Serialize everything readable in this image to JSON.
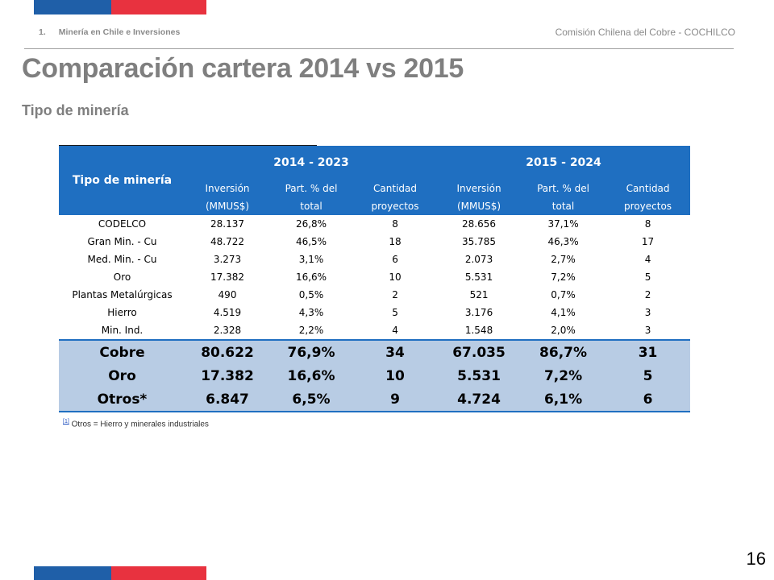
{
  "header": {
    "section_number": "1.",
    "section_title": "Minería en Chile e Inversiones",
    "organization": "Comisión Chilena del Cobre - COCHILCO"
  },
  "title": "Comparación cartera 2014 vs 2015",
  "subtitle": "Tipo de minería",
  "table": {
    "row_header": "Tipo de minería",
    "group1": "2014 - 2023",
    "group2": "2015 - 2024",
    "col_headers": [
      {
        "l1": "Inversión",
        "l2": "(MMUS$)"
      },
      {
        "l1": "Part. % del",
        "l2": "total"
      },
      {
        "l1": "Cantidad",
        "l2": "proyectos"
      },
      {
        "l1": "Inversión",
        "l2": "(MMUS$)"
      },
      {
        "l1": "Part. % del",
        "l2": "total"
      },
      {
        "l1": "Cantidad",
        "l2": "proyectos"
      }
    ],
    "rows": [
      {
        "name": "CODELCO",
        "v": [
          "28.137",
          "26,8%",
          "8",
          "28.656",
          "37,1%",
          "8"
        ]
      },
      {
        "name": "Gran Min. - Cu",
        "v": [
          "48.722",
          "46,5%",
          "18",
          "35.785",
          "46,3%",
          "17"
        ]
      },
      {
        "name": "Med. Min. - Cu",
        "v": [
          "3.273",
          "3,1%",
          "6",
          "2.073",
          "2,7%",
          "4"
        ]
      },
      {
        "name": "Oro",
        "v": [
          "17.382",
          "16,6%",
          "10",
          "5.531",
          "7,2%",
          "5"
        ]
      },
      {
        "name": "Plantas Metalúrgicas",
        "v": [
          "490",
          "0,5%",
          "2",
          "521",
          "0,7%",
          "2"
        ]
      },
      {
        "name": "Hierro",
        "v": [
          "4.519",
          "4,3%",
          "5",
          "3.176",
          "4,1%",
          "3"
        ]
      },
      {
        "name": "Min. Ind.",
        "v": [
          "2.328",
          "2,2%",
          "4",
          "1.548",
          "2,0%",
          "3"
        ]
      }
    ],
    "summary": [
      {
        "name": "Cobre",
        "v": [
          "80.622",
          "76,9%",
          "34",
          "67.035",
          "86,7%",
          "31"
        ]
      },
      {
        "name": "Oro",
        "v": [
          "17.382",
          "16,6%",
          "10",
          "5.531",
          "7,2%",
          "5"
        ]
      },
      {
        "name": "Otros*",
        "v": [
          "6.847",
          "6,5%",
          "9",
          "4.724",
          "6,1%",
          "6"
        ]
      }
    ]
  },
  "footnote": {
    "ref": "[1]",
    "text": "Otros = Hierro y minerales industriales"
  },
  "page_number": "16",
  "colors": {
    "brand_blue": "#1f5fa8",
    "brand_red": "#e8323f",
    "header_blue": "#1f6fc1",
    "summary_fill": "#b8cce4"
  }
}
